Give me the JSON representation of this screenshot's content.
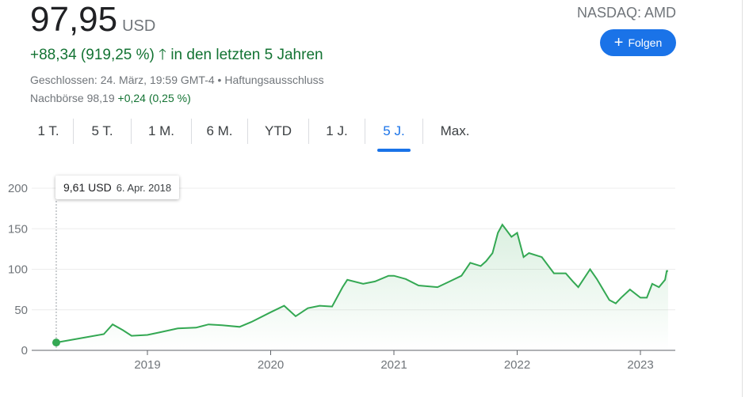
{
  "quote": {
    "price": "97,95",
    "currency": "USD",
    "change": "+88,34 (919,25 %)",
    "change_period": "in den letzten 5 Jahren",
    "closed": "Geschlossen: 24. März, 19:59 GMT-4 • Haftungsausschluss",
    "after_hours_label": "Nachbörse 98,19",
    "after_hours_change": "+0,24 (0,25 %)",
    "exchange": "NASDAQ: AMD",
    "follow_label": "Folgen"
  },
  "tabs": [
    {
      "label": "1 T."
    },
    {
      "label": "5 T."
    },
    {
      "label": "1 M."
    },
    {
      "label": "6 M."
    },
    {
      "label": "YTD"
    },
    {
      "label": "1 J."
    },
    {
      "label": "5 J.",
      "active": true
    },
    {
      "label": "Max."
    }
  ],
  "tooltip": {
    "value": "9,61 USD",
    "date": "6. Apr. 2018"
  },
  "colors": {
    "line": "#34a853",
    "accent": "#1a73e8",
    "up": "#137333"
  },
  "chart_data": {
    "type": "area",
    "xlabel": "",
    "ylabel": "",
    "ylim": [
      0,
      200
    ],
    "yticks": [
      "0",
      "50",
      "100",
      "150",
      "200"
    ],
    "xticks": [
      "2019",
      "2020",
      "2021",
      "2022",
      "2023"
    ],
    "grid": true,
    "x": [
      "2018-04-06",
      "2018-07-01",
      "2018-08-25",
      "2018-09-20",
      "2018-10-20",
      "2018-11-15",
      "2019-01-01",
      "2019-02-05",
      "2019-04-01",
      "2019-05-25",
      "2019-07-01",
      "2019-08-10",
      "2019-10-01",
      "2019-11-05",
      "2020-01-01",
      "2020-02-10",
      "2020-03-15",
      "2020-04-20",
      "2020-05-25",
      "2020-07-01",
      "2020-08-01",
      "2020-08-15",
      "2020-10-01",
      "2020-11-05",
      "2020-12-15",
      "2021-01-01",
      "2021-02-05",
      "2021-03-15",
      "2021-05-10",
      "2021-06-15",
      "2021-07-20",
      "2021-08-15",
      "2021-09-15",
      "2021-10-01",
      "2021-10-20",
      "2021-11-05",
      "2021-11-18",
      "2021-12-15",
      "2022-01-01",
      "2022-01-20",
      "2022-02-05",
      "2022-03-15",
      "2022-04-20",
      "2022-05-25",
      "2022-06-15",
      "2022-07-01",
      "2022-08-05",
      "2022-08-25",
      "2022-10-01",
      "2022-10-20",
      "2022-11-05",
      "2022-12-01",
      "2023-01-01",
      "2023-01-20",
      "2023-02-05",
      "2023-02-25",
      "2023-03-15",
      "2023-03-20",
      "2023-03-24"
    ],
    "values": [
      9.61,
      16,
      20,
      32,
      25,
      18,
      19,
      22,
      27,
      28,
      32,
      31,
      29,
      35,
      47,
      55,
      42,
      52,
      55,
      54,
      78,
      87,
      82,
      85,
      92,
      92,
      88,
      80,
      78,
      85,
      92,
      108,
      104,
      110,
      120,
      145,
      155,
      140,
      145,
      115,
      120,
      115,
      95,
      95,
      85,
      78,
      100,
      88,
      62,
      58,
      65,
      75,
      65,
      65,
      82,
      78,
      87,
      98,
      97.95
    ]
  }
}
